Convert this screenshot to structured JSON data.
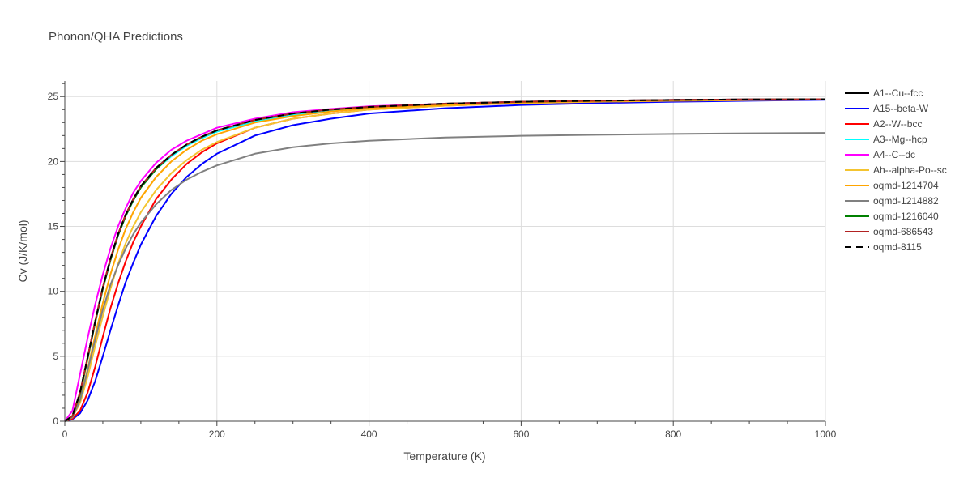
{
  "chart_data": {
    "type": "line",
    "title": "Phonon/QHA Predictions",
    "xlabel": "Temperature (K)",
    "ylabel": "Cv (J/K/mol)",
    "xlim": [
      0,
      1000
    ],
    "ylim": [
      0,
      26.2
    ],
    "xticks": [
      0,
      200,
      400,
      600,
      800,
      1000
    ],
    "yticks": [
      0,
      5,
      10,
      15,
      20,
      25
    ],
    "grid": true,
    "legend_position": "right",
    "x": [
      0,
      10,
      20,
      30,
      40,
      50,
      60,
      70,
      80,
      90,
      100,
      120,
      140,
      160,
      180,
      200,
      250,
      300,
      350,
      400,
      500,
      600,
      700,
      800,
      900,
      1000
    ],
    "series": [
      {
        "name": "A1--Cu--fcc",
        "color": "#000000",
        "dash": "solid",
        "values": [
          0,
          0.4,
          2.2,
          4.9,
          7.7,
          10.3,
          12.5,
          14.4,
          15.9,
          17.1,
          18.1,
          19.5,
          20.5,
          21.3,
          21.9,
          22.4,
          23.2,
          23.7,
          24.0,
          24.2,
          24.45,
          24.6,
          24.68,
          24.74,
          24.78,
          24.8
        ]
      },
      {
        "name": "A15--beta-W",
        "color": "#0000ff",
        "dash": "solid",
        "values": [
          0,
          0.15,
          0.6,
          1.6,
          3.1,
          5.0,
          7.0,
          8.9,
          10.7,
          12.2,
          13.6,
          15.8,
          17.5,
          18.8,
          19.8,
          20.6,
          22.0,
          22.8,
          23.3,
          23.7,
          24.1,
          24.35,
          24.5,
          24.6,
          24.68,
          24.75
        ]
      },
      {
        "name": "A2--W--bcc",
        "color": "#ff0000",
        "dash": "solid",
        "values": [
          0,
          0.2,
          0.8,
          2.2,
          4.2,
          6.5,
          8.7,
          10.6,
          12.3,
          13.8,
          15.0,
          17.1,
          18.6,
          19.8,
          20.7,
          21.4,
          22.6,
          23.3,
          23.7,
          24.0,
          24.3,
          24.5,
          24.6,
          24.68,
          24.73,
          24.77
        ]
      },
      {
        "name": "A3--Mg--hcp",
        "color": "#00ffff",
        "dash": "solid",
        "values": [
          0,
          0.4,
          2.1,
          4.8,
          7.6,
          10.2,
          12.4,
          14.3,
          15.8,
          17.0,
          18.0,
          19.4,
          20.4,
          21.2,
          21.8,
          22.3,
          23.1,
          23.6,
          23.95,
          24.15,
          24.4,
          24.55,
          24.65,
          24.72,
          24.76,
          24.8
        ]
      },
      {
        "name": "A4--C--dc",
        "color": "#ff00ff",
        "dash": "solid",
        "values": [
          0,
          0.8,
          3.6,
          6.4,
          9.0,
          11.3,
          13.3,
          15.0,
          16.4,
          17.6,
          18.5,
          19.9,
          20.9,
          21.6,
          22.1,
          22.6,
          23.3,
          23.8,
          24.05,
          24.25,
          24.45,
          24.6,
          24.68,
          24.74,
          24.78,
          24.8
        ]
      },
      {
        "name": "Ah--alpha-Po--sc",
        "color": "#f4c430",
        "dash": "solid",
        "values": [
          0,
          0.3,
          1.4,
          3.4,
          5.8,
          8.1,
          10.2,
          12.1,
          13.7,
          15.0,
          16.1,
          17.8,
          19.1,
          20.1,
          20.9,
          21.5,
          22.6,
          23.3,
          23.7,
          24.0,
          24.3,
          24.5,
          24.6,
          24.68,
          24.73,
          24.77
        ]
      },
      {
        "name": "oqmd-1214704",
        "color": "#ffa500",
        "dash": "solid",
        "values": [
          0,
          0.3,
          1.7,
          4.0,
          6.6,
          9.1,
          11.3,
          13.2,
          14.8,
          16.1,
          17.2,
          18.8,
          20.0,
          20.9,
          21.6,
          22.1,
          23.0,
          23.5,
          23.85,
          24.1,
          24.35,
          24.55,
          24.65,
          24.72,
          24.76,
          24.8
        ]
      },
      {
        "name": "oqmd-1214882",
        "color": "#808080",
        "dash": "solid",
        "values": [
          0,
          0.3,
          1.6,
          3.9,
          6.3,
          8.6,
          10.5,
          12.0,
          13.3,
          14.4,
          15.3,
          16.7,
          17.8,
          18.6,
          19.2,
          19.7,
          20.6,
          21.1,
          21.4,
          21.6,
          21.85,
          21.98,
          22.06,
          22.12,
          22.17,
          22.2
        ]
      },
      {
        "name": "oqmd-1216040",
        "color": "#008000",
        "dash": "solid",
        "values": [
          0,
          0.4,
          2.1,
          4.8,
          7.6,
          10.2,
          12.4,
          14.3,
          15.8,
          17.0,
          18.0,
          19.4,
          20.5,
          21.3,
          21.9,
          22.4,
          23.2,
          23.7,
          24.0,
          24.2,
          24.45,
          24.6,
          24.68,
          24.74,
          24.78,
          24.8
        ]
      },
      {
        "name": "oqmd-686543",
        "color": "#b22222",
        "dash": "solid",
        "values": [
          0,
          0.4,
          2.2,
          4.9,
          7.7,
          10.3,
          12.5,
          14.4,
          15.9,
          17.1,
          18.1,
          19.5,
          20.5,
          21.3,
          21.9,
          22.4,
          23.2,
          23.7,
          24.0,
          24.2,
          24.45,
          24.6,
          24.68,
          24.74,
          24.78,
          24.8
        ]
      },
      {
        "name": "oqmd-8115",
        "color": "#000000",
        "dash": "dash",
        "values": [
          0,
          0.4,
          2.2,
          4.9,
          7.7,
          10.3,
          12.5,
          14.4,
          15.9,
          17.1,
          18.1,
          19.5,
          20.5,
          21.3,
          21.9,
          22.4,
          23.2,
          23.7,
          24.0,
          24.2,
          24.45,
          24.6,
          24.68,
          24.74,
          24.78,
          24.8
        ]
      }
    ]
  }
}
